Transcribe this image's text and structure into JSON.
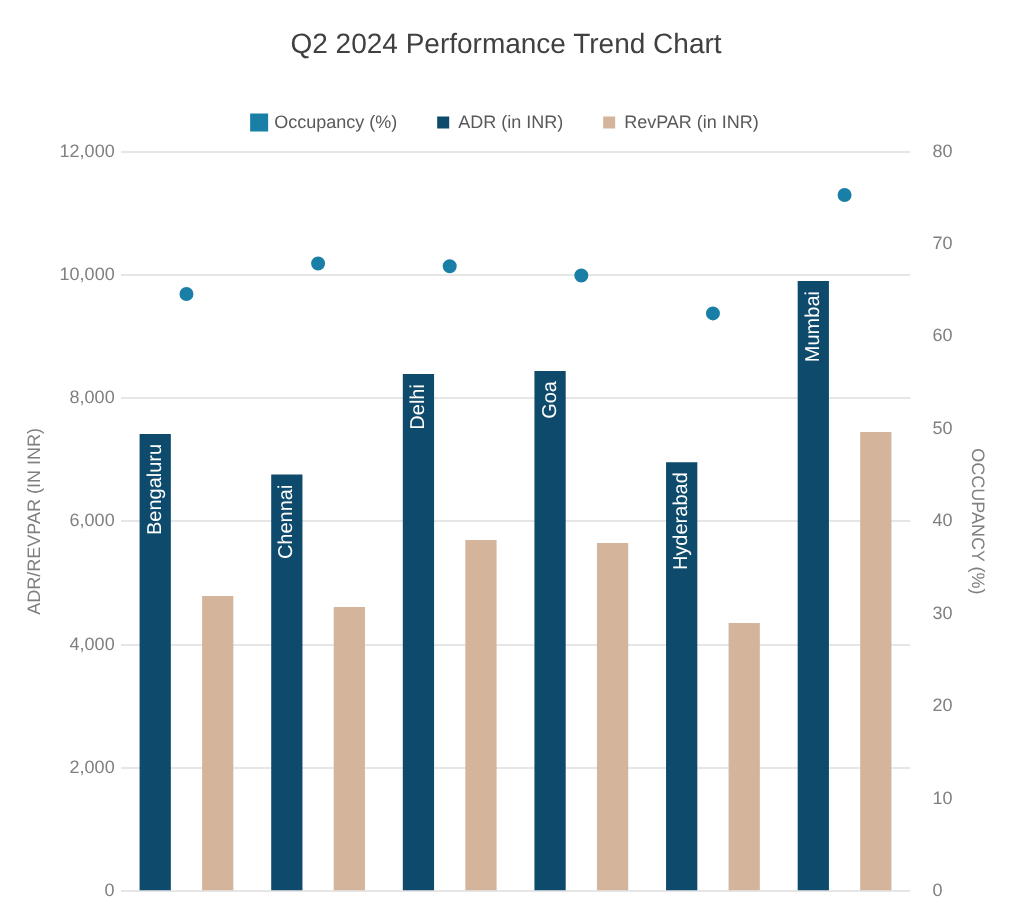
{
  "chart_data": {
    "type": "bar",
    "title": "Q2 2024 Performance Trend Chart",
    "ylabel": "ADR/REVPAR (IN INR)",
    "y2label": "OCCUPANCY (%)",
    "categories": [
      "Bengaluru",
      "Chennai",
      "Delhi",
      "Goa",
      "Hyderabad",
      "Mumbai"
    ],
    "series": [
      {
        "name": "ADR (in INR)",
        "color": "#0e4a6b",
        "values": [
          7420,
          6760,
          8390,
          8440,
          6960,
          9900
        ]
      },
      {
        "name": "RevPAR (in INR)",
        "color": "#d4b59b",
        "values": [
          4790,
          4610,
          5700,
          5650,
          4350,
          7450
        ]
      },
      {
        "name": "Occupancy (%)",
        "type": "scatter",
        "axis": "y2",
        "color": "#1a7fa6",
        "marker": "circle",
        "values": [
          64.6,
          67.9,
          67.6,
          66.6,
          62.5,
          75.3
        ]
      }
    ],
    "ylim": [
      0,
      12000
    ],
    "yticks": [
      {
        "value": 0,
        "label": "0"
      },
      {
        "value": 2000,
        "label": "2,000"
      },
      {
        "value": 4000,
        "label": "4,000"
      },
      {
        "value": 6000,
        "label": "6,000"
      },
      {
        "value": 8000,
        "label": "8,000"
      },
      {
        "value": 10000,
        "label": "10,000"
      },
      {
        "value": 12000,
        "label": "12,000"
      }
    ],
    "y2lim": [
      0,
      80
    ],
    "y2ticks": [
      0,
      10,
      20,
      30,
      40,
      50,
      60,
      70,
      80
    ],
    "grid": "y",
    "legend": "top",
    "tick_labels": "y"
  }
}
